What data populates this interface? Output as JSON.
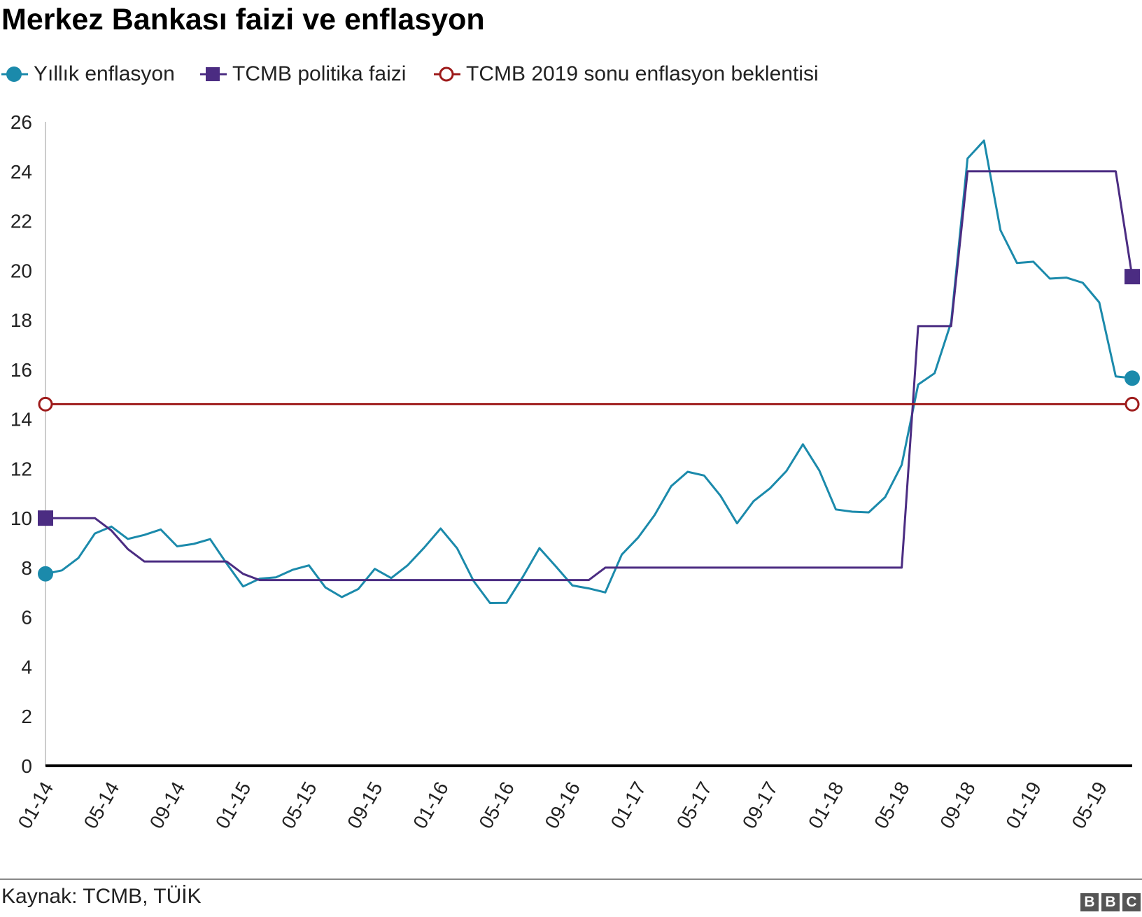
{
  "title": "Merkez Bankası faizi ve enflasyon",
  "source": "Kaynak: TCMB, TÜİK",
  "logo_letters": [
    "B",
    "B",
    "C"
  ],
  "chart_data": {
    "type": "line",
    "title": "Merkez Bankası faizi ve enflasyon",
    "xlabel": "",
    "ylabel": "",
    "ylim": [
      0,
      26
    ],
    "yticks": [
      0,
      2,
      4,
      6,
      8,
      10,
      12,
      14,
      16,
      18,
      20,
      22,
      24,
      26
    ],
    "xtick_labels": [
      "01-14",
      "05-14",
      "09-14",
      "01-15",
      "05-15",
      "09-15",
      "01-16",
      "05-16",
      "09-16",
      "01-17",
      "05-17",
      "09-17",
      "01-18",
      "05-18",
      "09-18",
      "01-19",
      "05-19"
    ],
    "x": [
      "01-14",
      "02-14",
      "03-14",
      "04-14",
      "05-14",
      "06-14",
      "07-14",
      "08-14",
      "09-14",
      "10-14",
      "11-14",
      "12-14",
      "01-15",
      "02-15",
      "03-15",
      "04-15",
      "05-15",
      "06-15",
      "07-15",
      "08-15",
      "09-15",
      "10-15",
      "11-15",
      "12-15",
      "01-16",
      "02-16",
      "03-16",
      "04-16",
      "05-16",
      "06-16",
      "07-16",
      "08-16",
      "09-16",
      "10-16",
      "11-16",
      "12-16",
      "01-17",
      "02-17",
      "03-17",
      "04-17",
      "05-17",
      "06-17",
      "07-17",
      "08-17",
      "09-17",
      "10-17",
      "11-17",
      "12-17",
      "01-18",
      "02-18",
      "03-18",
      "04-18",
      "05-18",
      "06-18",
      "07-18",
      "08-18",
      "09-18",
      "10-18",
      "11-18",
      "12-18",
      "01-19",
      "02-19",
      "03-19",
      "04-19",
      "05-19",
      "06-19",
      "07-19"
    ],
    "legend_position": "top-left",
    "grid": false,
    "series": [
      {
        "name": "Yıllık enflasyon",
        "color": "#1b8aab",
        "marker": "filled-circle",
        "values": [
          7.75,
          7.89,
          8.39,
          9.38,
          9.66,
          9.16,
          9.32,
          9.54,
          8.86,
          8.96,
          9.15,
          8.17,
          7.24,
          7.55,
          7.61,
          7.91,
          8.09,
          7.2,
          6.81,
          7.14,
          7.95,
          7.58,
          8.1,
          8.81,
          9.58,
          8.78,
          7.46,
          6.57,
          6.58,
          7.64,
          8.79,
          8.05,
          7.28,
          7.16,
          7.0,
          8.53,
          9.22,
          10.13,
          11.29,
          11.87,
          11.72,
          10.9,
          9.79,
          10.68,
          11.2,
          11.9,
          12.98,
          11.92,
          10.35,
          10.26,
          10.23,
          10.85,
          12.15,
          15.39,
          15.85,
          17.9,
          24.52,
          25.24,
          21.62,
          20.3,
          20.35,
          19.67,
          19.71,
          19.5,
          18.71,
          15.72,
          15.65
        ]
      },
      {
        "name": "TCMB politika faizi",
        "color": "#4b2c82",
        "marker": "filled-square",
        "values": [
          10,
          10,
          10,
          10,
          9.5,
          8.75,
          8.25,
          8.25,
          8.25,
          8.25,
          8.25,
          8.25,
          7.75,
          7.5,
          7.5,
          7.5,
          7.5,
          7.5,
          7.5,
          7.5,
          7.5,
          7.5,
          7.5,
          7.5,
          7.5,
          7.5,
          7.5,
          7.5,
          7.5,
          7.5,
          7.5,
          7.5,
          7.5,
          7.5,
          8,
          8,
          8,
          8,
          8,
          8,
          8,
          8,
          8,
          8,
          8,
          8,
          8,
          8,
          8,
          8,
          8,
          8,
          8,
          17.75,
          17.75,
          17.75,
          24,
          24,
          24,
          24,
          24,
          24,
          24,
          24,
          24,
          24,
          19.75
        ]
      },
      {
        "name": "TCMB 2019 sonu enflasyon beklentisi",
        "color": "#9e1b1b",
        "marker": "hollow-circle",
        "values": [
          14.6,
          14.6,
          14.6,
          14.6,
          14.6,
          14.6,
          14.6,
          14.6,
          14.6,
          14.6,
          14.6,
          14.6,
          14.6,
          14.6,
          14.6,
          14.6,
          14.6,
          14.6,
          14.6,
          14.6,
          14.6,
          14.6,
          14.6,
          14.6,
          14.6,
          14.6,
          14.6,
          14.6,
          14.6,
          14.6,
          14.6,
          14.6,
          14.6,
          14.6,
          14.6,
          14.6,
          14.6,
          14.6,
          14.6,
          14.6,
          14.6,
          14.6,
          14.6,
          14.6,
          14.6,
          14.6,
          14.6,
          14.6,
          14.6,
          14.6,
          14.6,
          14.6,
          14.6,
          14.6,
          14.6,
          14.6,
          14.6,
          14.6,
          14.6,
          14.6,
          14.6,
          14.6,
          14.6,
          14.6,
          14.6,
          14.6,
          14.6
        ]
      }
    ]
  }
}
